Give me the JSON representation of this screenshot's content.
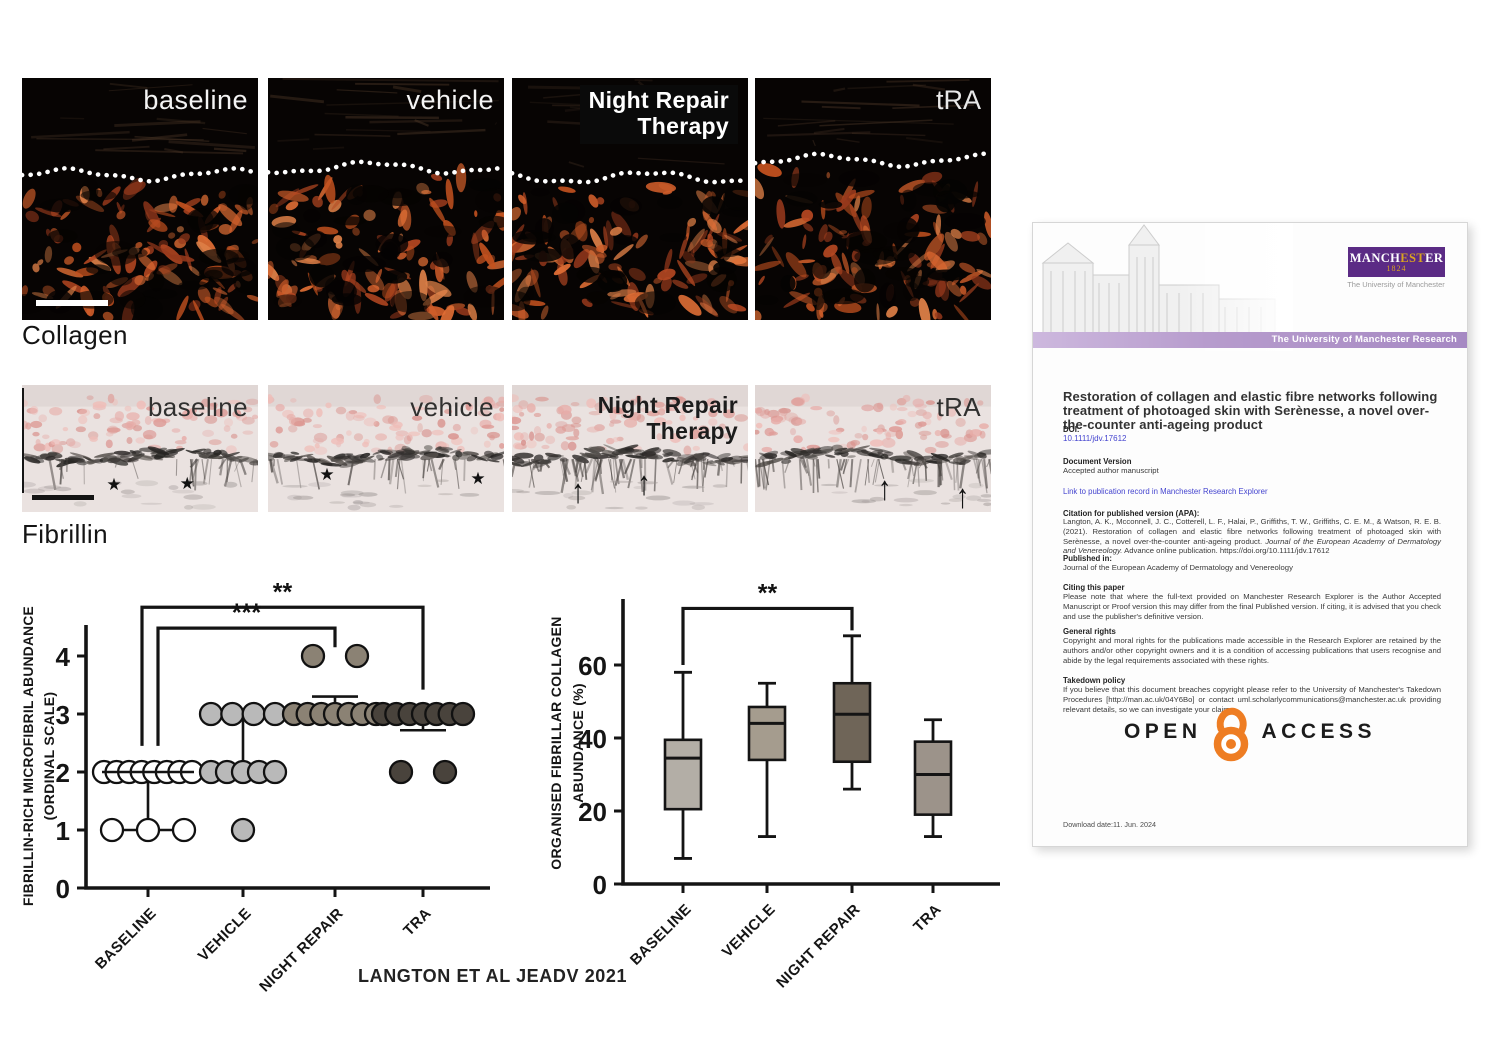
{
  "figure": {
    "rows": [
      {
        "id": "collagen",
        "label": "Collagen",
        "panels": [
          {
            "lines": [
              "baseline"
            ]
          },
          {
            "lines": [
              "vehicle"
            ]
          },
          {
            "lines": [
              "Night Repair",
              "Therapy"
            ],
            "chip": true
          },
          {
            "lines": [
              "tRA"
            ]
          }
        ]
      },
      {
        "id": "fibrillin",
        "label": "Fibrillin",
        "panels": [
          {
            "lines": [
              "baseline"
            ],
            "glyph": "★",
            "positions": [
              [
                39,
                79
              ],
              [
                70,
                78
              ]
            ]
          },
          {
            "lines": [
              "vehicle"
            ],
            "glyph": "★",
            "positions": [
              [
                25,
                71
              ],
              [
                89,
                74
              ]
            ]
          },
          {
            "lines": [
              "Night Repair",
              "Therapy"
            ],
            "bold": true,
            "glyph": "↑",
            "positions": [
              [
                28,
                84
              ],
              [
                56,
                78
              ]
            ]
          },
          {
            "lines": [
              "tRA"
            ],
            "glyph": "↑",
            "positions": [
              [
                55,
                82
              ],
              [
                88,
                88
              ]
            ]
          }
        ]
      }
    ],
    "caption": "LANGTON ET AL JEADV 2021"
  },
  "chart_data": [
    {
      "type": "scatter",
      "title": "",
      "ylabel_lines": [
        "FIBRILLIN-RICH MICROFIBRIL ABUNDANCE",
        "(ORDINAL SCALE)"
      ],
      "categories": [
        "BASELINE",
        "VEHICLE",
        "NIGHT REPAIR",
        "TRA"
      ],
      "yticks": [
        0,
        1,
        2,
        3,
        4
      ],
      "ylim": [
        0,
        4.55
      ],
      "groups": [
        {
          "category": "BASELINE",
          "fill": "#ffffff",
          "stroke": "#111111",
          "stacks": [
            {
              "value": 2,
              "count": 8,
              "spread": 88
            },
            {
              "value": 1,
              "count": 3,
              "spread": 72
            }
          ],
          "median": {
            "value": 2,
            "width": 92
          },
          "whisker": {
            "from": 2,
            "to": 1,
            "cap_width": 72
          }
        },
        {
          "category": "VEHICLE",
          "fill": "#b9b9b9",
          "stroke": "#111111",
          "stacks": [
            {
              "value": 3,
              "count": 4,
              "spread": 64
            },
            {
              "value": 2,
              "count": 5,
              "spread": 64
            },
            {
              "value": 1,
              "count": 1,
              "spread": 0
            }
          ],
          "whisker": {
            "from": 3,
            "to": 2,
            "cap_width": 0
          }
        },
        {
          "category": "NIGHT REPAIR",
          "fill": "#8b8274",
          "stroke": "#111111",
          "stacks": [
            {
              "value": 4,
              "count": 2,
              "spread": 44
            },
            {
              "value": 3,
              "count": 7,
              "spread": 82
            }
          ],
          "errorbar": {
            "from": 3,
            "to": 3.3,
            "cap_width": 46
          }
        },
        {
          "category": "TRA",
          "fill": "#49433c",
          "stroke": "#111111",
          "stacks": [
            {
              "value": 3,
              "count": 7,
              "spread": 80
            },
            {
              "value": 2,
              "count": 2,
              "spread": 44
            }
          ],
          "errorbar": {
            "from": 3,
            "to": 2.72,
            "cap_width": 46
          }
        }
      ],
      "brackets": [
        {
          "from": 0,
          "to": 3,
          "label": "**",
          "y": 4.84,
          "from_x_offset": -6,
          "to_x_offset": 0,
          "from_drop_to": 2.45,
          "to_drop_to": 3.42
        },
        {
          "from": 0,
          "to": 2,
          "label": "***",
          "y": 4.48,
          "from_x_offset": 10,
          "to_x_offset": 0,
          "from_drop_to": 2.45,
          "to_drop_to": 4.15
        }
      ]
    },
    {
      "type": "box",
      "title": "",
      "ylabel_lines": [
        "ORGANISED FIBRILLAR COLLAGEN",
        "ABUNDANCE (%)"
      ],
      "categories": [
        "BASELINE",
        "VEHICLE",
        "NIGHT REPAIR",
        "TRA"
      ],
      "yticks": [
        0,
        20,
        40,
        60
      ],
      "ylim": [
        0,
        77
      ],
      "boxes": [
        {
          "category": "BASELINE",
          "min": 7,
          "q1": 20.5,
          "median": 34.5,
          "q3": 39.5,
          "max": 58,
          "fill": "#b3aea6"
        },
        {
          "category": "VEHICLE",
          "min": 13,
          "q1": 34,
          "median": 44,
          "q3": 48.5,
          "max": 55,
          "fill": "#a59c8e"
        },
        {
          "category": "NIGHT REPAIR",
          "min": 26,
          "q1": 33.5,
          "median": 46.5,
          "q3": 55,
          "max": 68,
          "fill": "#6f6558"
        },
        {
          "category": "TRA",
          "min": 13,
          "q1": 19,
          "median": 30,
          "q3": 39,
          "max": 45,
          "fill": "#9c938a"
        }
      ],
      "bracket": {
        "from": 0,
        "to": 2,
        "label": "**",
        "y": 75.5,
        "from_drop_to": 60,
        "to_drop_to": 69.5
      }
    }
  ],
  "document": {
    "logo": {
      "pre": "MANCH",
      "gold_mid": "EST",
      "post": "ER",
      "year": "1824",
      "sub": "The University of Manchester"
    },
    "band": "The University of Manchester Research",
    "title": "Restoration of collagen and elastic fibre networks following treatment of photoaged skin with Serènesse, a novel over-the-counter anti-ageing product",
    "doi_label": "DOI:",
    "doi": "10.1111/jdv.17612",
    "docver_label": "Document Version",
    "docver": "Accepted author manuscript",
    "publink": "Link to publication record in Manchester Research Explorer",
    "citation_label": "Citation for published version (APA):",
    "citation_pre": "Langton, A. K., Mcconnell, J. C., Cotterell, L. F., Halai, P., Griffiths, T. W., Griffiths, C. E. M., & Watson, R. E. B. (2021). Restoration of collagen and elastic fibre networks following treatment of photoaged skin with Serènesse, a novel over-the-counter anti-ageing product. ",
    "citation_journal": "Journal of the European Academy of Dermatology and Venereology.",
    "citation_post": " Advance online publication. https://doi.org/10.1111/jdv.17612",
    "published_label": "Published in:",
    "published": "Journal of the European Academy of Dermatology and Venereology",
    "citing_label": "Citing this paper",
    "citing": "Please note that where the full-text provided on Manchester Research Explorer is the Author Accepted Manuscript or Proof version this may differ from the final Published version. If citing, it is advised that you check and use the publisher's definitive version.",
    "rights_label": "General rights",
    "rights": "Copyright and moral rights for the publications made accessible in the Research Explorer are retained by the authors and/or other copyright owners and it is a condition of accessing publications that users recognise and abide by the legal requirements associated with these rights.",
    "takedown_label": "Takedown policy",
    "takedown": "If you believe that this document breaches copyright please refer to the University of Manchester's Takedown Procedures [http://man.ac.uk/04Y6Bo] or contact uml.scholarlycommunications@manchester.ac.uk providing relevant details, so we can investigate your claim.",
    "open": "OPEN",
    "access": "ACCESS",
    "download": "Download date:11. Jun. 2024",
    "colors": {
      "purple": "#5b2b85",
      "band": "#a689c3",
      "gold": "#d9a41f",
      "orange": "#ee7d23",
      "link": "#4444cf"
    }
  }
}
